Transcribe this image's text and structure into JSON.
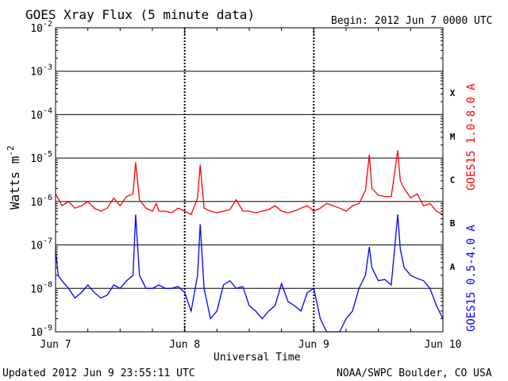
{
  "chart_data": {
    "type": "line",
    "title": "GOES Xray Flux (5 minute data)",
    "begin": "Begin:  2012 Jun 7 0000 UTC",
    "xlabel": "Universal Time",
    "ylabel_main": "Watts m",
    "ylabel_exp": "-2",
    "y_scale": "log",
    "ylim": [
      1e-09,
      0.01
    ],
    "y_ticks": [
      {
        "base": "10",
        "exp": "-9",
        "value": 1e-09
      },
      {
        "base": "10",
        "exp": "-8",
        "value": 1e-08
      },
      {
        "base": "10",
        "exp": "-7",
        "value": 1e-07
      },
      {
        "base": "10",
        "exp": "-6",
        "value": 1e-06
      },
      {
        "base": "10",
        "exp": "-5",
        "value": 1e-05
      },
      {
        "base": "10",
        "exp": "-4",
        "value": 0.0001
      },
      {
        "base": "10",
        "exp": "-3",
        "value": 0.001
      },
      {
        "base": "10",
        "exp": "-2",
        "value": 0.01
      }
    ],
    "x_ticks": [
      "Jun 7",
      "Jun 8",
      "Jun 9",
      "Jun 10"
    ],
    "xlim_days": [
      0,
      3
    ],
    "flare_classes": [
      {
        "label": "A",
        "value": 3.16e-08
      },
      {
        "label": "B",
        "value": 3.16e-07
      },
      {
        "label": "C",
        "value": 3.16e-06
      },
      {
        "label": "M",
        "value": 3.16e-05
      },
      {
        "label": "X",
        "value": 0.000316
      }
    ],
    "grid": true,
    "series": [
      {
        "name": "GOES15 1.0-8.0 A",
        "color": "#ff0000",
        "x_days": [
          0,
          0.05,
          0.1,
          0.15,
          0.2,
          0.25,
          0.3,
          0.35,
          0.4,
          0.45,
          0.5,
          0.55,
          0.6,
          0.62,
          0.65,
          0.7,
          0.75,
          0.78,
          0.8,
          0.85,
          0.9,
          0.95,
          1.0,
          1.05,
          1.1,
          1.12,
          1.15,
          1.2,
          1.25,
          1.3,
          1.35,
          1.4,
          1.45,
          1.5,
          1.55,
          1.6,
          1.65,
          1.7,
          1.75,
          1.8,
          1.85,
          1.9,
          1.95,
          2.0,
          2.05,
          2.1,
          2.15,
          2.2,
          2.25,
          2.3,
          2.35,
          2.4,
          2.43,
          2.45,
          2.5,
          2.55,
          2.6,
          2.65,
          2.67,
          2.7,
          2.75,
          2.8,
          2.85,
          2.9,
          2.95,
          3.0
        ],
        "values": [
          1.5e-06,
          8e-07,
          1e-06,
          7e-07,
          8e-07,
          1e-06,
          7e-07,
          6e-07,
          7e-07,
          1.2e-06,
          8e-07,
          1.3e-06,
          1.5e-06,
          8e-06,
          1.1e-06,
          7e-07,
          6e-07,
          9e-07,
          6e-07,
          6e-07,
          5.5e-07,
          7e-07,
          6e-07,
          5e-07,
          1.2e-06,
          7e-06,
          7e-07,
          6e-07,
          5.5e-07,
          6e-07,
          6.5e-07,
          1.1e-06,
          6e-07,
          6e-07,
          5.5e-07,
          6e-07,
          6.5e-07,
          8e-07,
          6e-07,
          5.5e-07,
          6e-07,
          7e-07,
          8e-07,
          6e-07,
          7e-07,
          9e-07,
          8e-07,
          7e-07,
          6e-07,
          8e-07,
          9e-07,
          1.8e-06,
          1.2e-05,
          2e-06,
          1.4e-06,
          1.3e-06,
          1.3e-06,
          1.5e-05,
          3e-06,
          2e-06,
          1.2e-06,
          1.5e-06,
          8e-07,
          9e-07,
          6e-07,
          5e-07
        ]
      },
      {
        "name": "GOES15 0.5-4.0 A",
        "color": "#0000ff",
        "x_days": [
          0,
          0.02,
          0.05,
          0.1,
          0.15,
          0.2,
          0.25,
          0.3,
          0.35,
          0.4,
          0.45,
          0.5,
          0.55,
          0.6,
          0.62,
          0.65,
          0.7,
          0.75,
          0.8,
          0.85,
          0.9,
          0.95,
          1.0,
          1.05,
          1.1,
          1.12,
          1.15,
          1.2,
          1.25,
          1.3,
          1.35,
          1.4,
          1.45,
          1.5,
          1.55,
          1.6,
          1.65,
          1.7,
          1.75,
          1.8,
          1.85,
          1.9,
          1.95,
          2.0,
          2.05,
          2.1,
          2.15,
          2.2,
          2.25,
          2.3,
          2.35,
          2.4,
          2.43,
          2.45,
          2.5,
          2.55,
          2.6,
          2.65,
          2.67,
          2.7,
          2.75,
          2.8,
          2.85,
          2.9,
          2.95,
          3.0
        ],
        "values": [
          8e-08,
          2e-08,
          1.5e-08,
          1e-08,
          6e-09,
          8e-09,
          1.2e-08,
          8e-09,
          6e-09,
          7e-09,
          1.2e-08,
          1e-08,
          1.5e-08,
          2e-08,
          5e-07,
          2e-08,
          1e-08,
          1e-08,
          1.2e-08,
          1e-08,
          1e-08,
          1.1e-08,
          8e-09,
          3e-09,
          2e-08,
          3e-07,
          1e-08,
          2e-09,
          3e-09,
          1.2e-08,
          1.5e-08,
          1e-08,
          1.1e-08,
          4e-09,
          3e-09,
          2e-09,
          3e-09,
          4e-09,
          1.3e-08,
          5e-09,
          4e-09,
          3e-09,
          8e-09,
          1e-08,
          2e-09,
          1e-09,
          1e-09,
          1e-09,
          2e-09,
          3e-09,
          1e-08,
          2e-08,
          9e-08,
          3e-08,
          1.5e-08,
          1.6e-08,
          1.2e-08,
          5e-07,
          8e-08,
          3e-08,
          2e-08,
          1.7e-08,
          1.5e-08,
          1e-08,
          4e-09,
          2e-09
        ]
      }
    ]
  },
  "footer": {
    "updated": "Updated 2012 Jun  9 23:55:11 UTC",
    "source": "NOAA/SWPC Boulder, CO USA"
  }
}
